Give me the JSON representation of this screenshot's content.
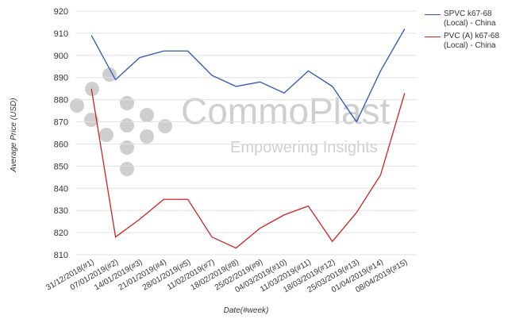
{
  "chart_data": {
    "type": "line",
    "categories": [
      "31/12/2018(#1)",
      "07/01/2019(#2)",
      "14/01/2019(#3)",
      "21/01/2019(#4)",
      "28/01/2019(#5)",
      "11/02/2019(#7)",
      "18/02/2019(#8)",
      "25/02/2019(#9)",
      "04/03/2019(#10)",
      "11/03/2019(#11)",
      "18/03/2019(#12)",
      "25/03/2019(#13)",
      "01/04/2019(#14)",
      "08/04/2019(#15)"
    ],
    "series": [
      {
        "name": "SPVC k67-68 (Local) - China",
        "color": "#2e55b8",
        "values": [
          909,
          889,
          899,
          902,
          902,
          891,
          886,
          888,
          883,
          893,
          886,
          870,
          893,
          912
        ]
      },
      {
        "name": "PVC (A) k67-68 (Local) - China",
        "color": "#cc2222",
        "values": [
          885,
          818,
          826,
          835,
          835,
          818,
          813,
          822,
          828,
          832,
          816,
          829,
          846,
          883
        ]
      }
    ],
    "ylim": [
      810,
      920
    ],
    "yticks": [
      810,
      820,
      830,
      840,
      850,
      860,
      870,
      880,
      890,
      900,
      910,
      920
    ],
    "y_label": "Average Price (USD)",
    "x_label": "Date(#week)",
    "grid": true,
    "watermark": {
      "brand": "CommoPlast",
      "tagline": "Empowering Insights"
    }
  }
}
